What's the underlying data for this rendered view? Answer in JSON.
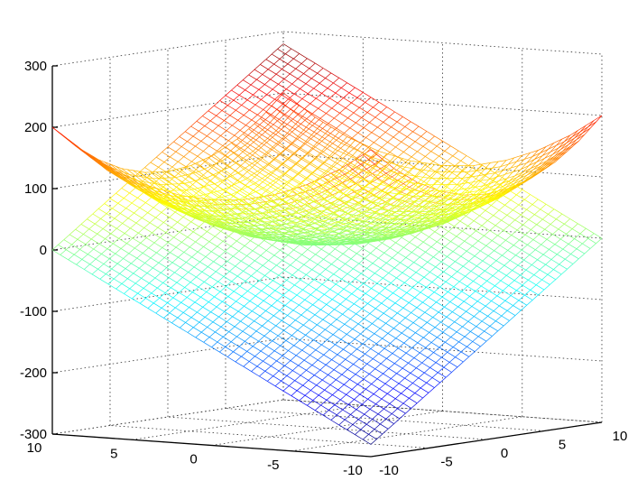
{
  "chart_data": {
    "type": "mesh3d",
    "title": "",
    "xlabel": "",
    "ylabel": "",
    "zlabel": "",
    "xlim": [
      -10,
      10
    ],
    "ylim": [
      -10,
      10
    ],
    "zlim": [
      -300,
      300
    ],
    "grid": true,
    "colormap": "jet",
    "x_ticks": [
      "-10",
      "-5",
      "0",
      "5",
      "10"
    ],
    "y_ticks": [
      "10",
      "5",
      "0",
      "-5",
      "-10"
    ],
    "z_ticks": [
      "300",
      "200",
      "100",
      "0",
      "-100",
      "-200",
      "-300"
    ],
    "grid_x": [
      -10,
      -8,
      -6,
      -4,
      -2,
      0,
      2,
      4,
      6,
      8,
      10
    ],
    "grid_y": [
      -10,
      -8,
      -6,
      -4,
      -2,
      0,
      2,
      4,
      6,
      8,
      10
    ],
    "surfaces": [
      {
        "z": [
          [
            200,
            164,
            136,
            116,
            104,
            100,
            104,
            116,
            136,
            164,
            200
          ],
          [
            164,
            128,
            100,
            80,
            68,
            64,
            68,
            80,
            100,
            128,
            164
          ],
          [
            136,
            100,
            72,
            52,
            40,
            36,
            40,
            52,
            72,
            100,
            136
          ],
          [
            116,
            80,
            52,
            32,
            20,
            16,
            20,
            32,
            52,
            80,
            116
          ],
          [
            104,
            68,
            40,
            20,
            8,
            4,
            8,
            20,
            40,
            68,
            104
          ],
          [
            100,
            64,
            36,
            16,
            4,
            0,
            4,
            16,
            36,
            64,
            100
          ],
          [
            104,
            68,
            40,
            20,
            8,
            4,
            8,
            20,
            40,
            68,
            104
          ],
          [
            116,
            80,
            52,
            32,
            20,
            16,
            20,
            32,
            52,
            80,
            116
          ],
          [
            136,
            100,
            72,
            52,
            40,
            36,
            40,
            52,
            72,
            100,
            136
          ],
          [
            164,
            128,
            100,
            80,
            68,
            64,
            68,
            80,
            100,
            128,
            164
          ],
          [
            200,
            164,
            136,
            116,
            104,
            100,
            104,
            116,
            136,
            164,
            200
          ]
        ]
      },
      {
        "z": [
          [
            -280,
            -252,
            -224,
            -196,
            -168,
            -140,
            -112,
            -84,
            -56,
            -28,
            0
          ],
          [
            -252,
            -224,
            -196,
            -168,
            -140,
            -112,
            -84,
            -56,
            -28,
            0,
            28
          ],
          [
            -224,
            -196,
            -168,
            -140,
            -112,
            -84,
            -56,
            -28,
            0,
            28,
            56
          ],
          [
            -196,
            -168,
            -140,
            -112,
            -84,
            -56,
            -28,
            0,
            28,
            56,
            84
          ],
          [
            -168,
            -140,
            -112,
            -84,
            -56,
            -28,
            0,
            28,
            56,
            84,
            112
          ],
          [
            -140,
            -112,
            -84,
            -56,
            -28,
            0,
            28,
            56,
            84,
            112,
            140
          ],
          [
            -112,
            -84,
            -56,
            -28,
            0,
            28,
            56,
            84,
            112,
            140,
            168
          ],
          [
            -84,
            -56,
            -28,
            0,
            28,
            56,
            84,
            112,
            140,
            168,
            196
          ],
          [
            -56,
            -28,
            0,
            28,
            56,
            84,
            112,
            140,
            168,
            196,
            224
          ],
          [
            -28,
            0,
            28,
            56,
            84,
            112,
            140,
            168,
            196,
            224,
            252
          ],
          [
            0,
            28,
            56,
            84,
            112,
            140,
            168,
            196,
            224,
            252,
            280
          ]
        ]
      }
    ]
  }
}
